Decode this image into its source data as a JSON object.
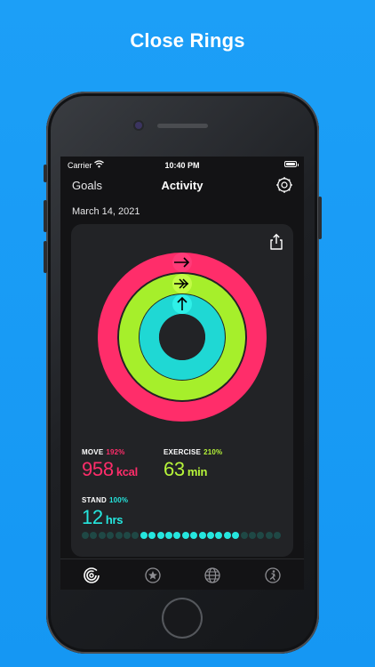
{
  "headline": "Close Rings",
  "status_bar": {
    "carrier": "Carrier",
    "time": "10:40 PM"
  },
  "navbar": {
    "left_label": "Goals",
    "title": "Activity"
  },
  "date": "March 14, 2021",
  "metrics": {
    "move": {
      "label": "MOVE",
      "percent": "192%",
      "value": "958",
      "unit": "kcal",
      "color": "#ff2d6a"
    },
    "exercise": {
      "label": "EXERCISE",
      "percent": "210%",
      "value": "63",
      "unit": "min",
      "color": "#b7f53a"
    },
    "stand": {
      "label": "STAND",
      "percent": "100%",
      "value": "12",
      "unit": "hrs",
      "color": "#25e6de"
    }
  },
  "rings": {
    "move_progress": 1.92,
    "exercise_progress": 2.1,
    "stand_progress": 1.0
  },
  "stand_hours": [
    false,
    false,
    false,
    false,
    false,
    false,
    false,
    true,
    true,
    true,
    true,
    true,
    true,
    true,
    true,
    true,
    true,
    true,
    true,
    false,
    false,
    false,
    false,
    false
  ],
  "tabs": [
    {
      "icon": "activity-rings-icon",
      "active": true
    },
    {
      "icon": "star-badge-icon",
      "active": false
    },
    {
      "icon": "globe-icon",
      "active": false
    },
    {
      "icon": "running-figure-icon",
      "active": false
    }
  ],
  "colors": {
    "background": "#1a9bf5",
    "accent_move": "#ff2d6a",
    "accent_exercise": "#b7f53a",
    "accent_stand": "#25e6de"
  }
}
